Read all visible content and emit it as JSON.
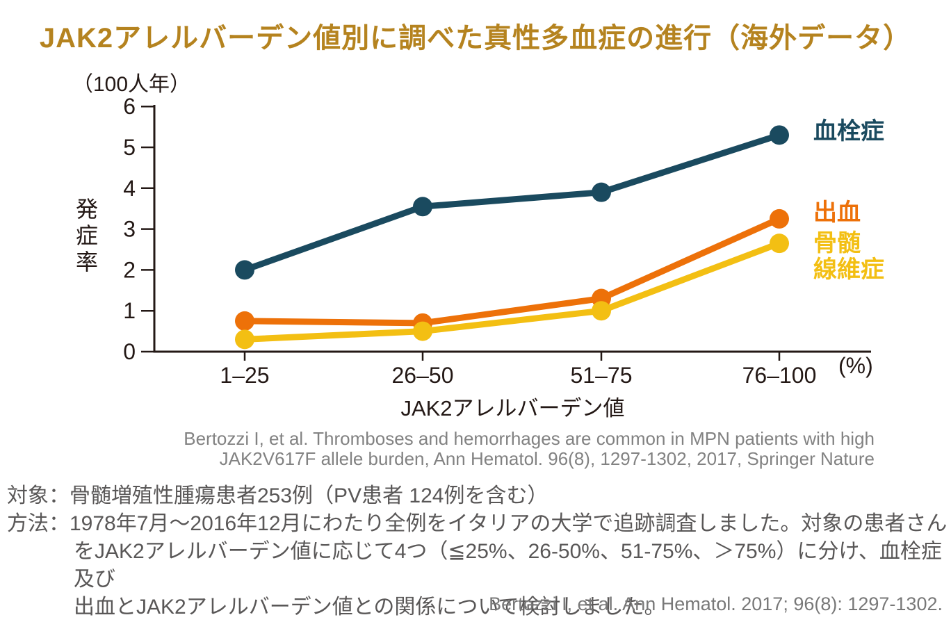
{
  "page": {
    "title": "JAK2アレルバーデン値別に調べた真性多血症の進行（海外データ）",
    "title_color": "#B5831F"
  },
  "chart_data": {
    "type": "line",
    "title": "JAK2アレルバーデン値別に調べた真性多血症の進行（海外データ）",
    "unit_label": "（100人年）",
    "ylabel": "発症率",
    "xlabel": "JAK2アレルバーデン値",
    "x_unit": "(%)",
    "categories": [
      "1–25",
      "26–50",
      "51–75",
      "76–100"
    ],
    "ylim": [
      0,
      6
    ],
    "ytick_step": 1,
    "grid": false,
    "legend_position": "right",
    "axis_color": "#231815",
    "series": [
      {
        "key": "thrombosis",
        "name": "血栓症",
        "color": "#1A4A5F",
        "values": [
          2.0,
          3.55,
          3.9,
          5.3
        ]
      },
      {
        "key": "hemorrhage",
        "name": "出血",
        "color": "#ED7109",
        "values": [
          0.75,
          0.7,
          1.3,
          3.25
        ]
      },
      {
        "key": "myelofibrosis",
        "name": "骨髄線維症",
        "color": "#F3BF13",
        "values": [
          0.3,
          0.5,
          1.0,
          2.65
        ]
      }
    ]
  },
  "legend": {
    "thrombosis": "血栓症",
    "hemorrhage": "出血",
    "myelofibrosis_line1": "骨髄",
    "myelofibrosis_line2": "線維症"
  },
  "citation": {
    "line1": "Bertozzi I, et al. Thromboses and hemorrhages are common in MPN patients with high",
    "line2": "JAK2V617F allele burden, Ann Hematol. 96(8), 1297-1302, 2017, Springer Nature"
  },
  "study": {
    "lines": [
      "対象：骨髄増殖性腫瘍患者253例（PV患者 124例を含む）",
      "方法：1978年7月～2016年12月にわたり全例をイタリアの大学で追跡調査しました。対象の患者さん",
      "をJAK2アレルバーデン値に応じて4つ（≦25%、26-50%、51-75%、＞75%）に分け、血栓症及び",
      "出血とJAK2アレルバーデン値との関係について検討しました。"
    ]
  },
  "footer_citation": "Bertozzi I, et al. Ann Hematol. 2017; 96(8): 1297-1302."
}
